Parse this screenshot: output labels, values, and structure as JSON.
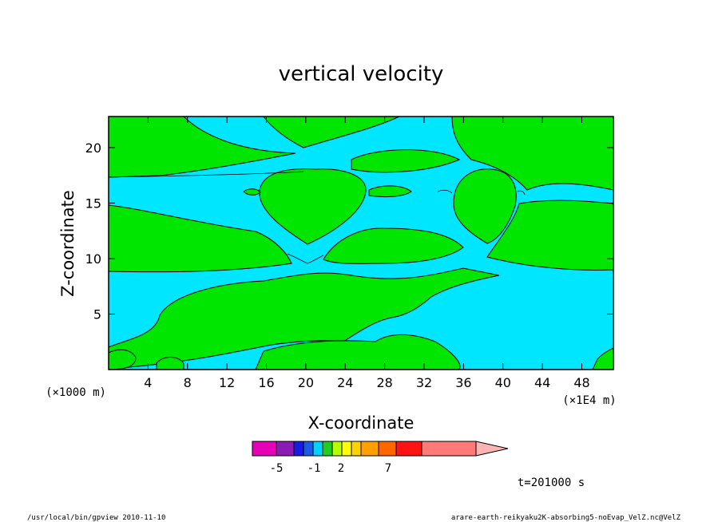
{
  "chart_data": {
    "type": "heatmap",
    "title": "vertical velocity",
    "xlabel": "X-coordinate",
    "ylabel": "Z-coordinate",
    "x_unit_label": "(×1000 m)",
    "x_scale_label": "(×1E4 m)",
    "xlim": [
      0,
      51.2
    ],
    "ylim": [
      0,
      22.8
    ],
    "x_ticks": [
      "4",
      "8",
      "12",
      "16",
      "20",
      "24",
      "28",
      "32",
      "36",
      "40",
      "44",
      "48"
    ],
    "y_ticks": [
      "5",
      "10",
      "15",
      "20"
    ],
    "time_label": "t=201000 s",
    "grid": false,
    "legend": "colorbar, bottom-center",
    "colorbar": {
      "tick_labels": [
        "-5",
        "-1",
        "2",
        "7"
      ],
      "colors": [
        "#e600b8",
        "#8c1ab4",
        "#1a1ae6",
        "#1a5ae6",
        "#00d2ff",
        "#22cc22",
        "#b4ff00",
        "#ffff00",
        "#ffd200",
        "#ffa000",
        "#ff6600",
        "#ff1414",
        "#ff7a78",
        "#ffb4b4"
      ]
    },
    "colors": {
      "positive": "#00e600",
      "negative": "#00e6ff",
      "contour": "#000000"
    }
  },
  "footer": {
    "left": "/usr/local/bin/gpview  2010-11-10",
    "right": "arare-earth-reikyaku2K-absorbing5-noEvap_VelZ.nc@VelZ"
  }
}
